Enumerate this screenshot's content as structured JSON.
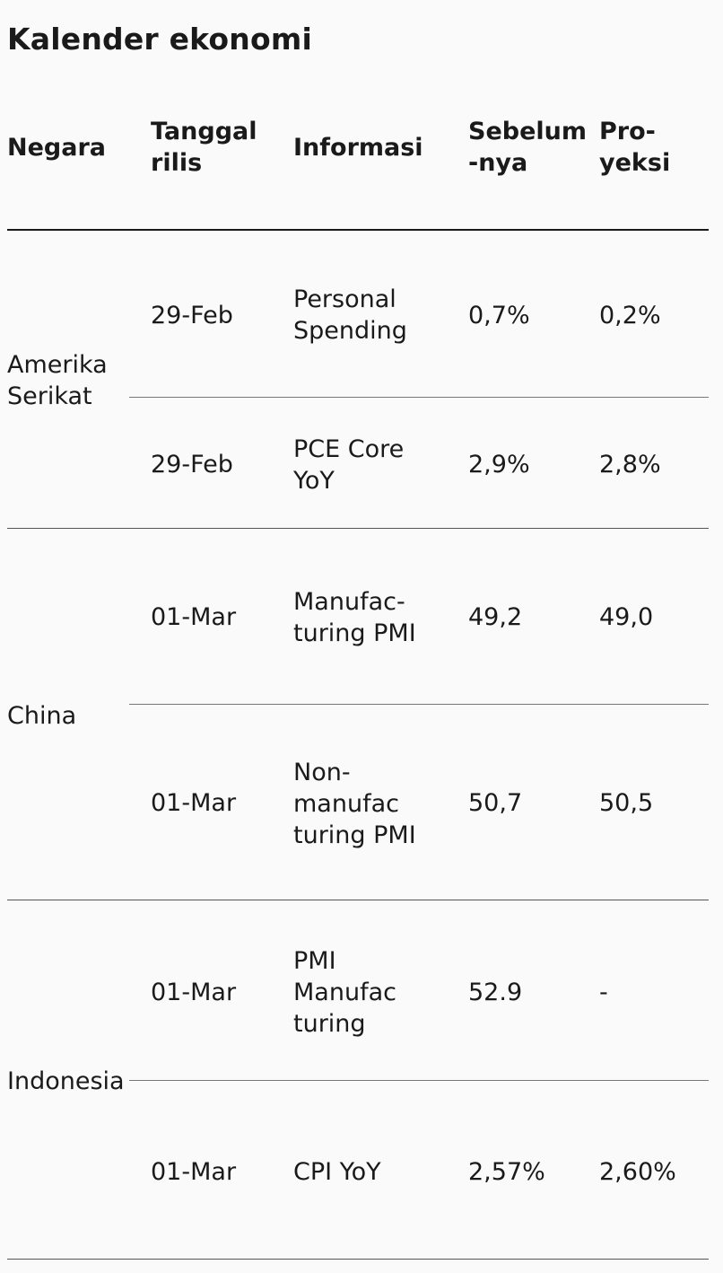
{
  "title": "Kalender ekonomi",
  "headers": {
    "country": "Negara",
    "release_date": "Tanggal\nrilis",
    "info": "Informasi",
    "previous": "Sebelum\n-nya",
    "projection": "Pro-\nyeksi"
  },
  "groups": [
    {
      "country": "Amerika\nSerikat",
      "rows": [
        {
          "date": "29-Feb",
          "info": "Personal\nSpending",
          "previous": "0,7%",
          "projection": "0,2%"
        },
        {
          "date": "29-Feb",
          "info": "PCE Core\nYoY",
          "previous": "2,9%",
          "projection": "2,8%"
        }
      ]
    },
    {
      "country": "China",
      "rows": [
        {
          "date": "01-Mar",
          "info": "Manufac-\nturing PMI",
          "previous": "49,2",
          "projection": "49,0"
        },
        {
          "date": "01-Mar",
          "info": "Non-\nmanufac\nturing PMI",
          "previous": "50,7",
          "projection": "50,5"
        }
      ]
    },
    {
      "country": "Indonesia",
      "rows": [
        {
          "date": "01-Mar",
          "info": "PMI\nManufac\nturing",
          "previous": "52.9",
          "projection": "-"
        },
        {
          "date": "01-Mar",
          "info": "CPI YoY",
          "previous": "2,57%",
          "projection": "2,60%"
        }
      ]
    }
  ]
}
